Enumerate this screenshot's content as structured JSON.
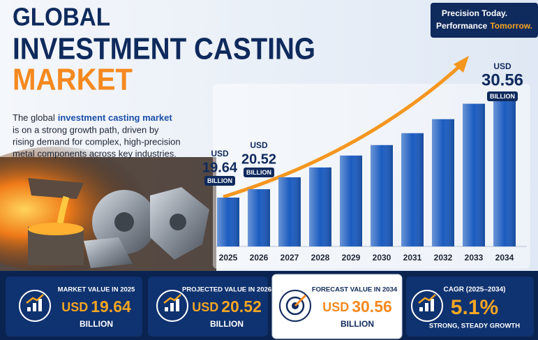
{
  "header": {
    "title_lines": [
      "GLOBAL",
      "INVESTMENT CASTING",
      "MARKET"
    ],
    "description": [
      "The global",
      "investment casting market",
      "is on a strong growth path, driven by",
      "rising demand for complex, high-precision",
      "metal components across key industries."
    ]
  },
  "badge": [
    "Precision Today.",
    "Performance",
    "Tomorrow."
  ],
  "chart_data": {
    "type": "bar",
    "categories": [
      "2025",
      "2026",
      "2027",
      "2028",
      "2029",
      "2030",
      "2031",
      "2032",
      "2033",
      "2034"
    ],
    "values": [
      19.64,
      20.52,
      21.77,
      22.8,
      24.05,
      25.15,
      26.4,
      27.87,
      29.49,
      30.56
    ],
    "color": "#1c5cc0",
    "unit": "USD",
    "scale": "BILLION"
  },
  "cards": [
    {
      "label": "MARKET VALUE IN 2025"
    },
    {
      "label": "PROJECTED VALUE IN 2026"
    },
    {
      "label": "FORECAST VALUE IN 2034"
    },
    {
      "label": "CAGR (2025–2034)",
      "value": "5.1%",
      "note": "STRONG, STEADY GROWTH"
    }
  ]
}
